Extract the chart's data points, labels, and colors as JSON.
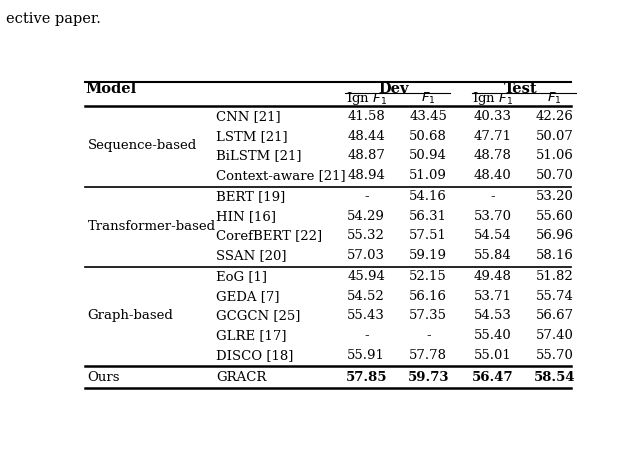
{
  "title_text": "ective paper.",
  "sections": [
    {
      "group_label": "Sequence-based",
      "rows": [
        {
          "model": "CNN [21]",
          "vals": [
            "41.58",
            "43.45",
            "40.33",
            "42.26"
          ]
        },
        {
          "model": "LSTM [21]",
          "vals": [
            "48.44",
            "50.68",
            "47.71",
            "50.07"
          ]
        },
        {
          "model": "BiLSTM [21]",
          "vals": [
            "48.87",
            "50.94",
            "48.78",
            "51.06"
          ]
        },
        {
          "model": "Context-aware [21]",
          "vals": [
            "48.94",
            "51.09",
            "48.40",
            "50.70"
          ]
        }
      ]
    },
    {
      "group_label": "Transformer-based",
      "rows": [
        {
          "model": "BERT [19]",
          "vals": [
            "-",
            "54.16",
            "-",
            "53.20"
          ]
        },
        {
          "model": "HIN [16]",
          "vals": [
            "54.29",
            "56.31",
            "53.70",
            "55.60"
          ]
        },
        {
          "model": "CorefBERT [22]",
          "vals": [
            "55.32",
            "57.51",
            "54.54",
            "56.96"
          ]
        },
        {
          "model": "SSAN [20]",
          "vals": [
            "57.03",
            "59.19",
            "55.84",
            "58.16"
          ]
        }
      ]
    },
    {
      "group_label": "Graph-based",
      "rows": [
        {
          "model": "EoG [1]",
          "vals": [
            "45.94",
            "52.15",
            "49.48",
            "51.82"
          ]
        },
        {
          "model": "GEDA [7]",
          "vals": [
            "54.52",
            "56.16",
            "53.71",
            "55.74"
          ]
        },
        {
          "model": "GCGCN [25]",
          "vals": [
            "55.43",
            "57.35",
            "54.53",
            "56.67"
          ]
        },
        {
          "model": "GLRE [17]",
          "vals": [
            "-",
            "-",
            "55.40",
            "57.40"
          ]
        },
        {
          "model": "DISCO [18]",
          "vals": [
            "55.91",
            "57.78",
            "55.01",
            "55.70"
          ]
        }
      ]
    }
  ],
  "ours_row": {
    "group_label": "Ours",
    "model": "GRACR",
    "vals": [
      "57.85",
      "59.73",
      "56.47",
      "58.54"
    ]
  }
}
